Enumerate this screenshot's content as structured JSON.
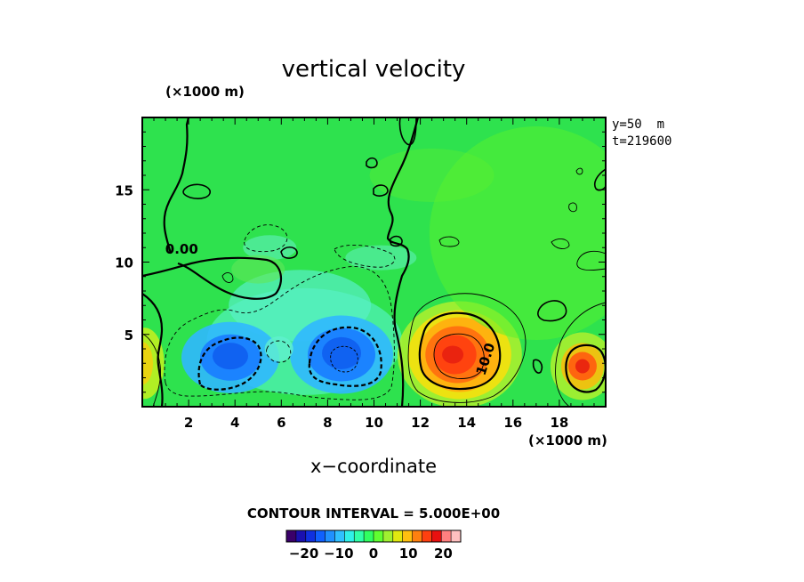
{
  "chart_data": {
    "type": "heatmap",
    "title": "vertical velocity",
    "xlabel": "x−coordinate",
    "x_unit": "(×1000 m)",
    "y_unit": "(×1000 m)",
    "xlim": [
      0,
      20
    ],
    "ylim": [
      0,
      20
    ],
    "x_ticks": [
      2,
      4,
      6,
      8,
      10,
      12,
      14,
      16,
      18
    ],
    "y_ticks": [
      5,
      10,
      15
    ],
    "annotations": [
      "y=50  m",
      "t=219600"
    ],
    "contour_labels": [
      {
        "text": "0.00",
        "x": 1.7,
        "y": 10.6
      },
      {
        "text": "10.0",
        "x": 15.0,
        "y": 3.2
      }
    ],
    "contour_interval_text": "CONTOUR INTERVAL = 5.000E+00",
    "colorbar": {
      "ticks": [
        -20,
        -10,
        0,
        10,
        20
      ],
      "range": [
        -25,
        25
      ],
      "colors": [
        "#3a006a",
        "#1a10b0",
        "#1030e0",
        "#1060ff",
        "#2090ff",
        "#30c0ff",
        "#30f0e8",
        "#30ffa8",
        "#30ff60",
        "#60ff30",
        "#a0f030",
        "#e0e810",
        "#ffc010",
        "#ff8010",
        "#ff4010",
        "#e81010",
        "#ff8080",
        "#ffc0c0"
      ]
    },
    "features": [
      {
        "type": "downdraft",
        "cx": 3.8,
        "cy": 3.4,
        "peak": -17
      },
      {
        "type": "downdraft",
        "cx": 8.6,
        "cy": 3.6,
        "peak": -16
      },
      {
        "type": "weak-downdraft",
        "cx": 7.2,
        "cy": 7.5,
        "peak": -5
      },
      {
        "type": "updraft",
        "cx": 13.7,
        "cy": 3.6,
        "peak": 21
      },
      {
        "type": "updraft",
        "cx": 19.0,
        "cy": 2.8,
        "peak": 18
      },
      {
        "type": "updraft",
        "cx": 0.2,
        "cy": 3.0,
        "peak": 9
      }
    ]
  }
}
